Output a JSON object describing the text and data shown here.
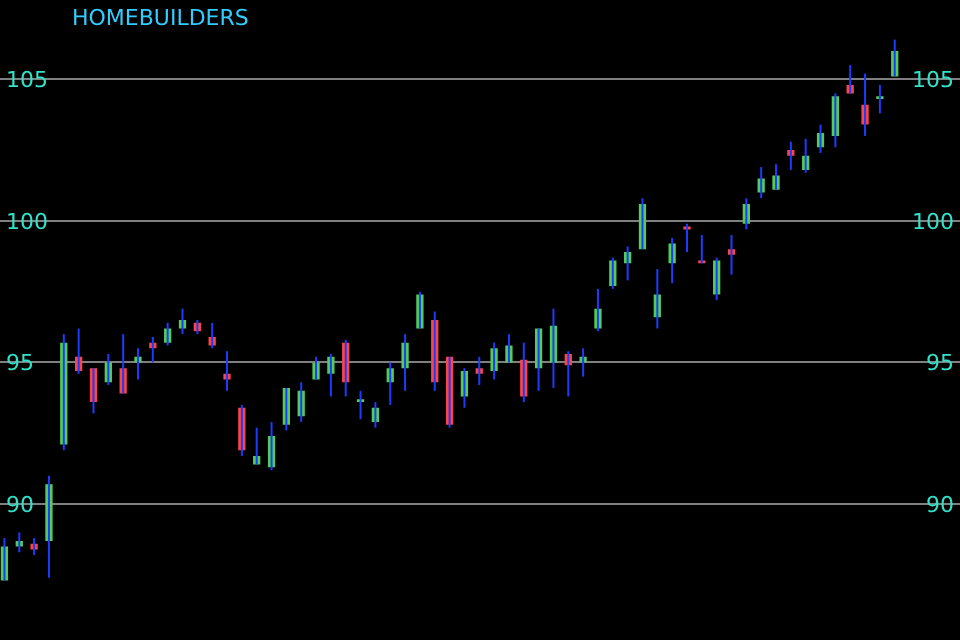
{
  "chart_data": {
    "type": "candlestick",
    "title": "HOMEBUILDERS",
    "categories": [
      null,
      null,
      null,
      null,
      null,
      null,
      null,
      null,
      null,
      null,
      null,
      null,
      null,
      null,
      null,
      null,
      null,
      null,
      null,
      null,
      null,
      null,
      null,
      null,
      null,
      null,
      null,
      null,
      null,
      null,
      null,
      null,
      null,
      null,
      null,
      null,
      null,
      null,
      null,
      null,
      null,
      null,
      null,
      null,
      null,
      null,
      null,
      null,
      null,
      null,
      null,
      null,
      null,
      null,
      null,
      null,
      null,
      null,
      null,
      null,
      null
    ],
    "ohlc": [
      [
        87.3,
        88.8,
        87.3,
        88.5
      ],
      [
        88.5,
        89.0,
        88.3,
        88.7
      ],
      [
        88.6,
        88.8,
        88.2,
        88.4
      ],
      [
        88.7,
        91.0,
        87.4,
        90.7
      ],
      [
        92.1,
        96.0,
        91.9,
        95.7
      ],
      [
        95.2,
        96.2,
        94.6,
        94.7
      ],
      [
        94.8,
        94.8,
        93.2,
        93.6
      ],
      [
        94.3,
        95.3,
        94.2,
        95.0
      ],
      [
        94.8,
        96.0,
        93.9,
        93.9
      ],
      [
        95.0,
        95.5,
        94.4,
        95.2
      ],
      [
        95.7,
        95.9,
        95.0,
        95.5
      ],
      [
        95.7,
        96.4,
        95.6,
        96.2
      ],
      [
        96.2,
        96.9,
        96.0,
        96.5
      ],
      [
        96.4,
        96.5,
        96.0,
        96.1
      ],
      [
        95.9,
        96.4,
        95.5,
        95.6
      ],
      [
        94.6,
        95.4,
        94.0,
        94.4
      ],
      [
        93.4,
        93.5,
        91.7,
        91.9
      ],
      [
        91.4,
        92.7,
        91.4,
        91.7
      ],
      [
        91.3,
        92.9,
        91.2,
        92.4
      ],
      [
        92.8,
        94.1,
        92.6,
        94.1
      ],
      [
        93.1,
        94.3,
        92.9,
        94.0
      ],
      [
        94.4,
        95.2,
        94.4,
        95.0
      ],
      [
        94.6,
        95.3,
        93.8,
        95.2
      ],
      [
        95.7,
        95.8,
        93.8,
        94.3
      ],
      [
        93.6,
        94.0,
        93.0,
        93.7
      ],
      [
        92.9,
        93.6,
        92.7,
        93.4
      ],
      [
        94.3,
        95.0,
        93.5,
        94.8
      ],
      [
        94.8,
        96.0,
        94.0,
        95.7
      ],
      [
        96.2,
        97.5,
        96.2,
        97.4
      ],
      [
        96.5,
        96.8,
        94.0,
        94.3
      ],
      [
        95.2,
        95.2,
        92.7,
        92.8
      ],
      [
        93.8,
        94.8,
        93.4,
        94.7
      ],
      [
        94.8,
        95.2,
        94.2,
        94.6
      ],
      [
        94.7,
        95.7,
        94.4,
        95.5
      ],
      [
        95.0,
        96.0,
        95.0,
        95.6
      ],
      [
        95.1,
        95.7,
        93.6,
        93.8
      ],
      [
        94.8,
        96.2,
        94.0,
        96.2
      ],
      [
        95.0,
        96.9,
        94.1,
        96.3
      ],
      [
        95.3,
        95.4,
        93.8,
        94.9
      ],
      [
        95.0,
        95.5,
        94.5,
        95.2
      ],
      [
        96.2,
        97.6,
        96.1,
        96.9
      ],
      [
        97.7,
        98.7,
        97.6,
        98.6
      ],
      [
        98.5,
        99.1,
        97.9,
        98.9
      ],
      [
        99.0,
        100.8,
        99.0,
        100.6
      ],
      [
        96.6,
        98.3,
        96.2,
        97.4
      ],
      [
        98.5,
        99.4,
        97.8,
        99.2
      ],
      [
        99.8,
        99.9,
        98.9,
        99.7
      ],
      [
        98.6,
        99.5,
        98.5,
        98.5
      ],
      [
        97.4,
        98.7,
        97.2,
        98.6
      ],
      [
        99.0,
        99.5,
        98.1,
        98.8
      ],
      [
        99.9,
        100.8,
        99.7,
        100.6
      ],
      [
        101.0,
        101.9,
        100.8,
        101.5
      ],
      [
        101.1,
        102.0,
        101.1,
        101.6
      ],
      [
        102.5,
        102.8,
        101.8,
        102.3
      ],
      [
        101.8,
        102.9,
        101.7,
        102.3
      ],
      [
        102.6,
        103.4,
        102.4,
        103.1
      ],
      [
        103.0,
        104.5,
        102.6,
        104.4
      ],
      [
        104.8,
        105.5,
        104.5,
        104.5
      ],
      [
        104.1,
        105.2,
        103.0,
        103.4
      ],
      [
        104.3,
        104.8,
        103.8,
        104.4
      ],
      [
        105.1,
        106.4,
        105.1,
        106.0
      ]
    ],
    "color": "#1a3cff",
    "colors": [
      "#55cc55",
      "#55cc55",
      "#ff4444",
      "#55cc55",
      "#55cc55",
      "#ff4444",
      "#ff4444",
      "#55cc55",
      "#ff4444",
      "#55cc55",
      "#ff4444",
      "#55cc55",
      "#55cc55",
      "#ff4444",
      "#ff4444",
      "#ff4444",
      "#ff4444",
      "#55cc55",
      "#55cc55",
      "#55cc55",
      "#55cc55",
      "#55cc55",
      "#55cc55",
      "#ff4444",
      "#55cc55",
      "#55cc55",
      "#55cc55",
      "#55cc55",
      "#55cc55",
      "#ff4444",
      "#ff4444",
      "#55cc55",
      "#ff4444",
      "#55cc55",
      "#55cc55",
      "#ff4444",
      "#55cc55",
      "#55cc55",
      "#ff4444",
      "#55cc55",
      "#55cc55",
      "#55cc55",
      "#55cc55",
      "#55cc55",
      "#55cc55",
      "#55cc55",
      "#ff4444",
      "#ff4444",
      "#55cc55",
      "#ff4444",
      "#55cc55",
      "#55cc55",
      "#55cc55",
      "#ff4444",
      "#55cc55",
      "#55cc55",
      "#55cc55",
      "#ff4444",
      "#ff4444",
      "#55cc55",
      "#55cc55"
    ],
    "ylim": [
      85.2,
      107.8
    ],
    "yticks": [
      90,
      95,
      100,
      105
    ],
    "y2lim": [
      85.2,
      107.8
    ],
    "y2ticks": [
      90,
      95,
      100,
      105
    ],
    "grid": "y"
  }
}
